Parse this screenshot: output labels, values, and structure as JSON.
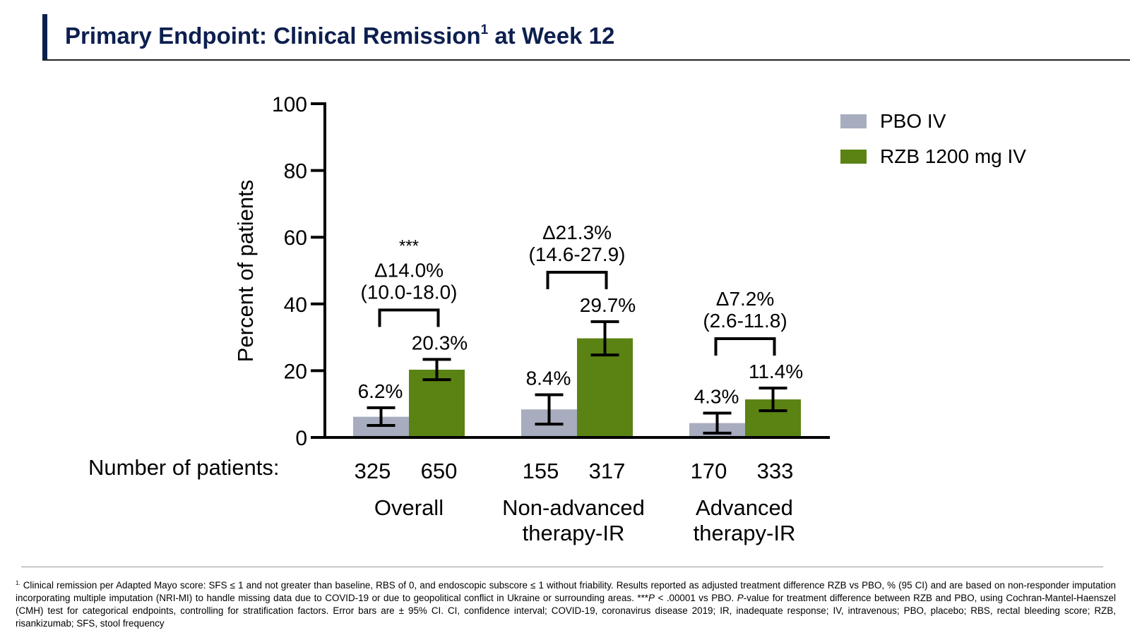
{
  "slide": {
    "title_main": "Primary Endpoint: Clinical Remission",
    "title_sup": "1",
    "title_end": " at Week 12"
  },
  "chart_data": {
    "type": "bar",
    "ylabel": "Percent of patients",
    "ylim": [
      0,
      100
    ],
    "yticks": [
      0,
      20,
      40,
      60,
      80,
      100
    ],
    "grid": false,
    "legend_position": "top-right",
    "categories": [
      {
        "lines": [
          "Overall"
        ]
      },
      {
        "lines": [
          "Non-advanced",
          "therapy-IR"
        ]
      },
      {
        "lines": [
          "Advanced",
          "therapy-IR"
        ]
      }
    ],
    "series": [
      {
        "name": "PBO IV",
        "color": "#a7adbe",
        "values": [
          6.2,
          8.4,
          4.3
        ],
        "labels": [
          "6.2%",
          "8.4%",
          "4.3%"
        ],
        "err_low": [
          3.6,
          4.0,
          1.3
        ],
        "err_high": [
          8.9,
          12.8,
          7.3
        ],
        "n": [
          "325",
          "155",
          "170"
        ]
      },
      {
        "name": "RZB 1200 mg IV",
        "color": "#5a8313",
        "values": [
          20.3,
          29.7,
          11.4
        ],
        "labels": [
          "20.3%",
          "29.7%",
          "11.4%"
        ],
        "err_low": [
          17.3,
          24.7,
          8.0
        ],
        "err_high": [
          23.4,
          34.7,
          14.8
        ],
        "n": [
          "650",
          "317",
          "333"
        ]
      }
    ],
    "differences": [
      {
        "sig": "***",
        "delta": "Δ14.0%",
        "ci": "(10.0-18.0)"
      },
      {
        "sig": "",
        "delta": "Δ21.3%",
        "ci": "(14.6-27.9)"
      },
      {
        "sig": "",
        "delta": "Δ7.2%",
        "ci": "(2.6-11.8)"
      }
    ],
    "n_label": "Number of patients:"
  },
  "footnote": {
    "marker": "1.",
    "text_1": " Clinical remission per Adapted Mayo score: SFS ≤ 1 and not greater than baseline, RBS of 0, and endoscopic subscore ≤ 1 without friability. Results reported as adjusted treatment difference RZB vs PBO, % (95 CI) and are based on non-responder imputation incorporating multiple imputation (NRI-MI) to handle missing data due to COVID-19 or due to geopolitical conflict in Ukraine or surrounding areas. ***",
    "p_italic": "P",
    "text_2": " < .00001 vs PBO. ",
    "p_italic_2": "P",
    "text_3": "-value for treatment difference between RZB and PBO, using Cochran-Mantel-Haenszel (CMH) test for categorical endpoints, controlling for stratification factors. Error bars are ± 95% CI. CI, confidence interval; COVID-19, coronavirus disease 2019; IR, inadequate response; IV, intravenous; PBO, placebo; RBS, rectal bleeding score; RZB, risankizumab; SFS, stool frequency"
  }
}
